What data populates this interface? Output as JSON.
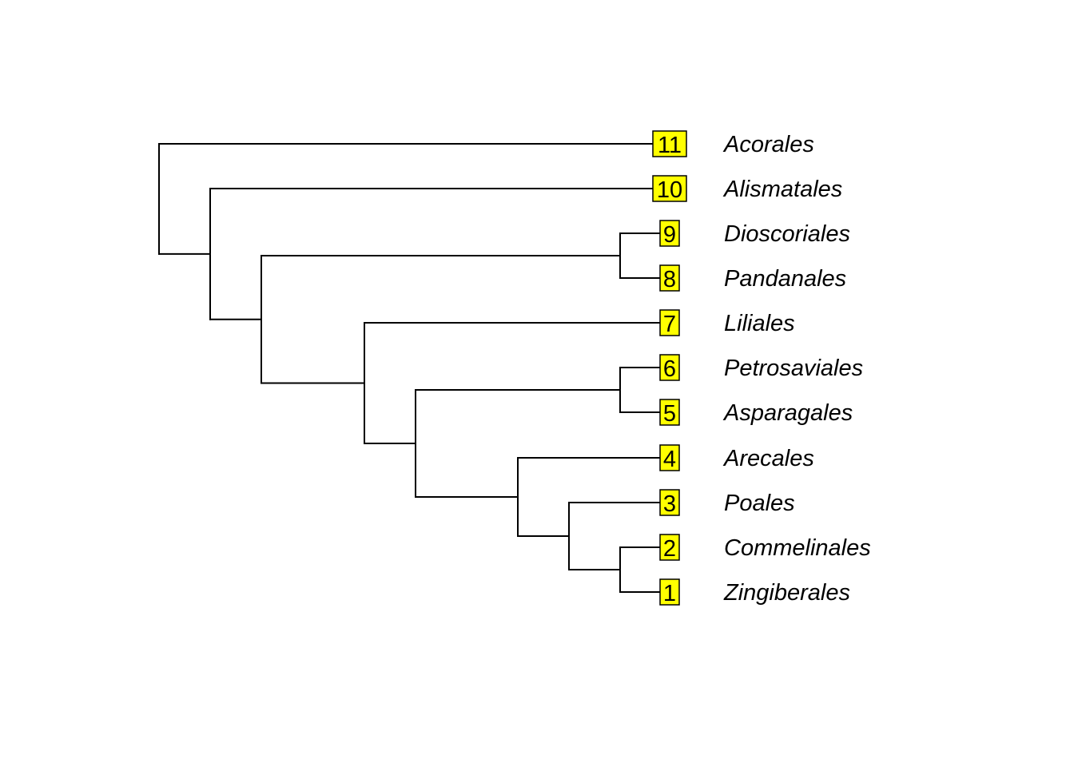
{
  "tree": {
    "tips": [
      {
        "number": "11",
        "taxon": "Acorales"
      },
      {
        "number": "10",
        "taxon": "Alismatales"
      },
      {
        "number": "9",
        "taxon": "Dioscoriales"
      },
      {
        "number": "8",
        "taxon": "Pandanales"
      },
      {
        "number": "7",
        "taxon": "Liliales"
      },
      {
        "number": "6",
        "taxon": "Petrosaviales"
      },
      {
        "number": "5",
        "taxon": "Asparagales"
      },
      {
        "number": "4",
        "taxon": "Arecales"
      },
      {
        "number": "3",
        "taxon": "Poales"
      },
      {
        "number": "2",
        "taxon": "Commelinales"
      },
      {
        "number": "1",
        "taxon": "Zingiberales"
      }
    ],
    "topology": "(Acorales,(Alismatales,((Dioscoriales,Pandanales),(Liliales,((Petrosaviales,Asparagales),(Arecales,(Poales,(Commelinales,Zingiberales))))))))",
    "colors": {
      "tip_box_fill": "#ffff00",
      "line": "#000000",
      "background": "#ffffff"
    }
  }
}
